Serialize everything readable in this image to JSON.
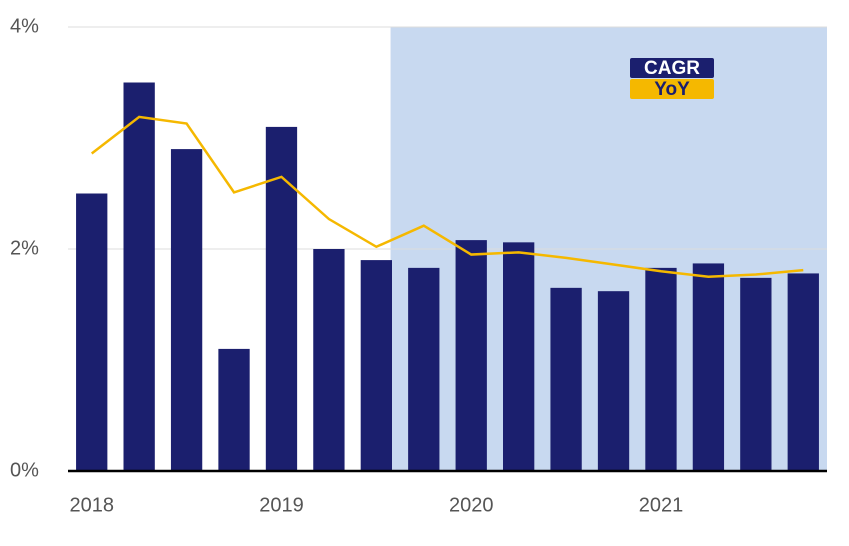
{
  "chart_data": {
    "type": "bar-line",
    "categories": [
      "2018",
      null,
      null,
      null,
      "2019",
      null,
      null,
      null,
      "2020",
      null,
      null,
      null,
      "2021",
      null,
      null,
      null
    ],
    "series": [
      {
        "name": "CAGR",
        "type": "bar",
        "color": "#1b1f6e",
        "values": [
          2.5,
          3.5,
          2.9,
          1.1,
          3.1,
          2.0,
          1.9,
          1.83,
          2.08,
          2.06,
          1.65,
          1.62,
          1.83,
          1.87,
          1.74,
          1.78
        ]
      },
      {
        "name": "YoY",
        "type": "line",
        "color": "#f5b800",
        "values": [
          2.86,
          3.19,
          3.13,
          2.51,
          2.65,
          2.27,
          2.02,
          2.21,
          1.95,
          1.97,
          1.92,
          1.86,
          1.8,
          1.75,
          1.77,
          1.81
        ]
      }
    ],
    "ylim": [
      0,
      4
    ],
    "yticks": [
      {
        "value": 0,
        "label": "0%"
      },
      {
        "value": 2,
        "label": "2%"
      },
      {
        "value": 4,
        "label": "4%"
      }
    ],
    "grid": true,
    "legend": "top-right"
  }
}
